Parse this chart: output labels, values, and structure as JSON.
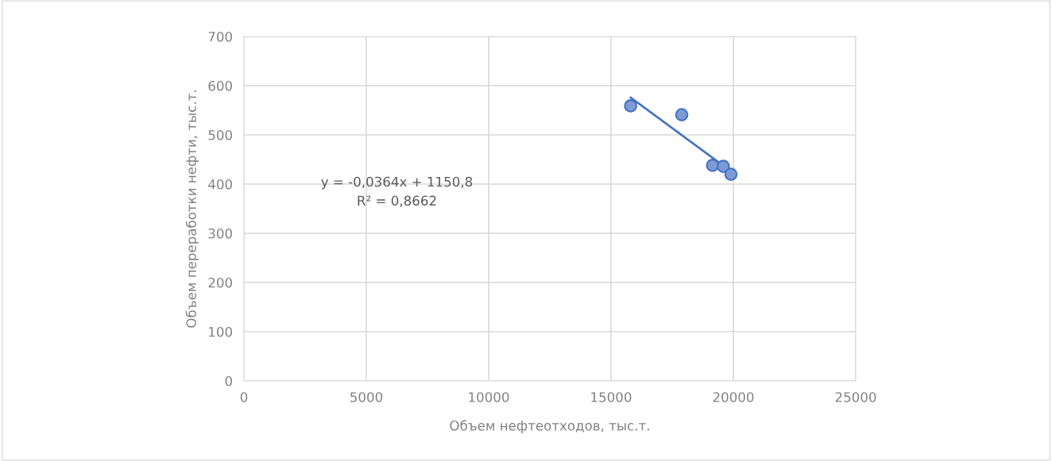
{
  "chart_data": {
    "type": "scatter",
    "xlabel": "Объем нефтеотходов, тыс.т.",
    "ylabel": "Объем переработки нефти, тыс.т.",
    "series": [
      {
        "color": "#7f9bd6",
        "x": [
          15800,
          17890,
          19150,
          19590,
          19900
        ],
        "values": [
          559,
          541,
          438,
          436,
          420
        ],
        "marker": "circle"
      },
      {
        "type": "line",
        "color": "#4472c4",
        "x": [
          15800,
          19900
        ],
        "values": [
          576,
          426
        ],
        "line_style": "solid"
      }
    ],
    "annotations": [
      "y = -0,0364x + 1150,8",
      "R² = 0,8662"
    ],
    "xlim": [
      0,
      25000
    ],
    "xticks": [
      0,
      5000,
      10000,
      15000,
      20000,
      25000
    ],
    "ylim": [
      0,
      700
    ],
    "yticks": [
      0,
      100,
      200,
      300,
      400,
      500,
      600,
      700
    ],
    "grid": true,
    "legend": false
  }
}
